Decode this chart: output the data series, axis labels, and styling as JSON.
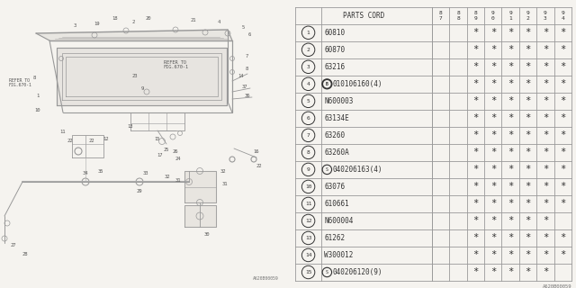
{
  "title": "1993 Subaru Justy Back Door Panel Diagram 1",
  "bg_color": "#f5f3ef",
  "line_color": "#888888",
  "text_color": "#444444",
  "part_code_header": "PARTS CORD",
  "year_cols": [
    "8\n7",
    "8\n8",
    "8\n9",
    "9\n0",
    "9\n1",
    "9\n2",
    "9\n3",
    "9\n4"
  ],
  "rows": [
    {
      "num": "1",
      "bold_circle": false,
      "s_circle": false,
      "code": "60810",
      "stars": [
        0,
        0,
        1,
        1,
        1,
        1,
        1,
        1
      ]
    },
    {
      "num": "2",
      "bold_circle": false,
      "s_circle": false,
      "code": "60870",
      "stars": [
        0,
        0,
        1,
        1,
        1,
        1,
        1,
        1
      ]
    },
    {
      "num": "3",
      "bold_circle": false,
      "s_circle": false,
      "code": "63216",
      "stars": [
        0,
        0,
        1,
        1,
        1,
        1,
        1,
        1
      ]
    },
    {
      "num": "4",
      "bold_circle": true,
      "s_circle": false,
      "code": "010106160(4)",
      "stars": [
        0,
        0,
        1,
        1,
        1,
        1,
        1,
        1
      ]
    },
    {
      "num": "5",
      "bold_circle": false,
      "s_circle": false,
      "code": "N600003",
      "stars": [
        0,
        0,
        1,
        1,
        1,
        1,
        1,
        1
      ]
    },
    {
      "num": "6",
      "bold_circle": false,
      "s_circle": false,
      "code": "63134E",
      "stars": [
        0,
        0,
        1,
        1,
        1,
        1,
        1,
        1
      ]
    },
    {
      "num": "7",
      "bold_circle": false,
      "s_circle": false,
      "code": "63260",
      "stars": [
        0,
        0,
        1,
        1,
        1,
        1,
        1,
        1
      ]
    },
    {
      "num": "8",
      "bold_circle": false,
      "s_circle": false,
      "code": "63260A",
      "stars": [
        0,
        0,
        1,
        1,
        1,
        1,
        1,
        1
      ]
    },
    {
      "num": "9",
      "bold_circle": false,
      "s_circle": true,
      "code": "040206163(4)",
      "stars": [
        0,
        0,
        1,
        1,
        1,
        1,
        1,
        1
      ]
    },
    {
      "num": "10",
      "bold_circle": false,
      "s_circle": false,
      "code": "63076",
      "stars": [
        0,
        0,
        1,
        1,
        1,
        1,
        1,
        1
      ]
    },
    {
      "num": "11",
      "bold_circle": false,
      "s_circle": false,
      "code": "610661",
      "stars": [
        0,
        0,
        1,
        1,
        1,
        1,
        1,
        1
      ]
    },
    {
      "num": "12",
      "bold_circle": false,
      "s_circle": false,
      "code": "N600004",
      "stars": [
        0,
        0,
        1,
        1,
        1,
        1,
        1,
        0
      ]
    },
    {
      "num": "13",
      "bold_circle": false,
      "s_circle": false,
      "code": "61262",
      "stars": [
        0,
        0,
        1,
        1,
        1,
        1,
        1,
        1
      ]
    },
    {
      "num": "14",
      "bold_circle": false,
      "s_circle": false,
      "code": "W300012",
      "stars": [
        0,
        0,
        1,
        1,
        1,
        1,
        1,
        1
      ]
    },
    {
      "num": "15",
      "bold_circle": false,
      "s_circle": true,
      "code": "040206120(9)",
      "stars": [
        0,
        0,
        1,
        1,
        1,
        1,
        1,
        0
      ]
    }
  ],
  "diagram_ref": "A620B00059"
}
